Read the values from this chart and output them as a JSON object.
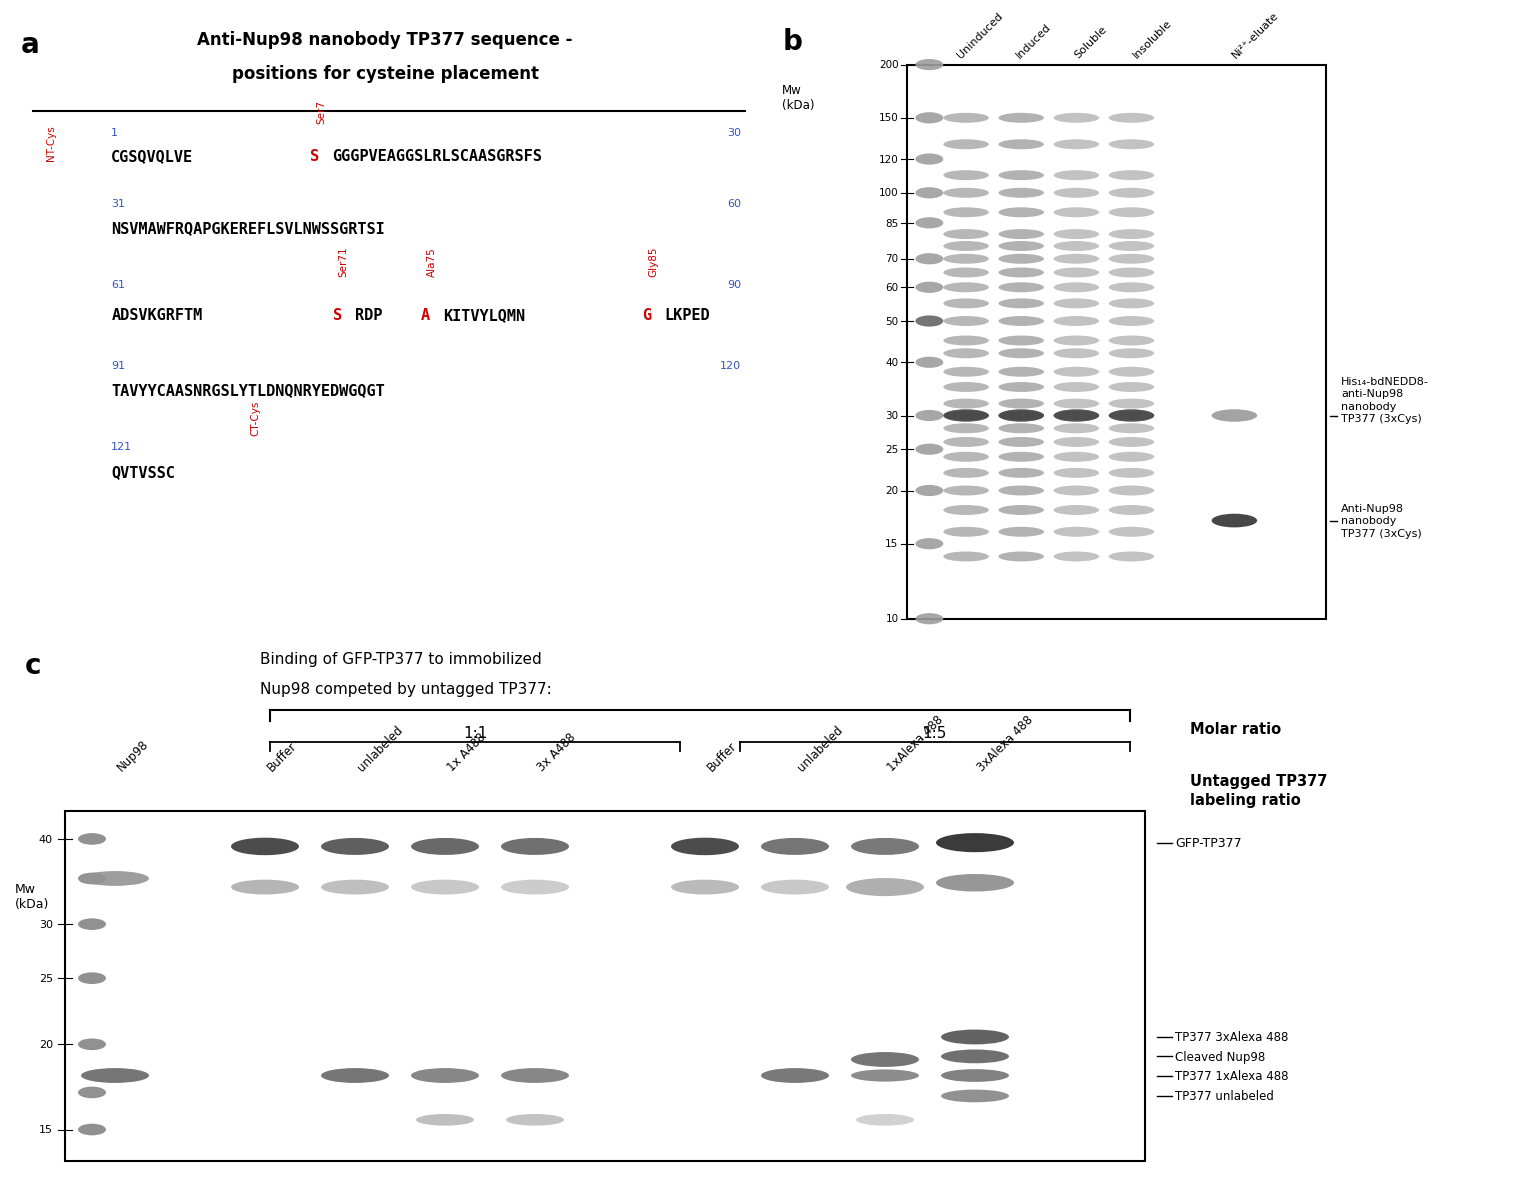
{
  "panel_a": {
    "title_line1": "Anti-Nup98 nanobody TP377 sequence -",
    "title_line2": "positions for cysteine placement",
    "label": "a",
    "seq_rows": [
      {
        "num_start": "1",
        "num_end": "30",
        "parts": [
          [
            "CGSQVQLVE",
            "black"
          ],
          [
            "S",
            "red"
          ],
          [
            "GGGPVEAGGSLRLSCAASGRSFS",
            "black"
          ]
        ],
        "nt_cys": true,
        "ser7": true
      },
      {
        "num_start": "31",
        "num_end": "60",
        "parts": [
          [
            "NSVMAWFRQAPGKEREFLSVLNWSSGRTSI",
            "black"
          ]
        ],
        "nt_cys": false,
        "ser7": false
      },
      {
        "num_start": "61",
        "num_end": "90",
        "parts": [
          [
            "ADSVKGRFTM",
            "black"
          ],
          [
            "S",
            "red"
          ],
          [
            "RDP",
            "black"
          ],
          [
            "A",
            "red"
          ],
          [
            "KITVYLQMN",
            "black"
          ],
          [
            "G",
            "red"
          ],
          [
            "LKPED",
            "black"
          ]
        ],
        "nt_cys": false,
        "ser7": false,
        "ser71": true,
        "ala75": true,
        "gly85": true
      },
      {
        "num_start": "91",
        "num_end": "120",
        "parts": [
          [
            "TAVYYCAASNRGSLYTLDNQNRYEDWGQGT",
            "black"
          ]
        ],
        "nt_cys": false,
        "ser7": false
      },
      {
        "num_start": "121",
        "num_end": null,
        "parts": [
          [
            "QVTVSSC",
            "black"
          ]
        ],
        "nt_cys": false,
        "ser7": false,
        "ct_cys": true
      }
    ]
  },
  "panel_b": {
    "label": "b",
    "mw_ticks": [
      200,
      150,
      120,
      100,
      85,
      70,
      60,
      50,
      40,
      30,
      25,
      20,
      15,
      10
    ],
    "col_labels": [
      "Uninduced",
      "Induced",
      "Soluble",
      "Insoluble",
      "Ni²⁺-eluate"
    ],
    "annotation1": "His₁₄-bdNEDD8-\nanti-Nup98\nnanobody\nTP377 (3xCys)",
    "annotation2": "Anti-Nup98\nnanobody\nTP377 (3xCys)"
  },
  "panel_c": {
    "label": "c",
    "title_line1": "Binding of GFP-TP377 to immobilized",
    "title_line2": "Nup98 competed by untagged TP377:",
    "molar_ratio_label": "Molar ratio",
    "untagged_label": "Untagged TP377\nlabeling ratio",
    "mw_ticks": [
      40,
      30,
      25,
      20,
      15
    ],
    "col_labels": [
      "Nup98",
      "Buffer",
      "unlabeled",
      "1x A488",
      "3x A488",
      "Buffer",
      "unlabeled",
      "1xAlexa 488",
      "3xAlexa 488"
    ],
    "ratio_11_label": "1:1",
    "ratio_15_label": "1:5",
    "ann_gfp": "GFP-TP377",
    "ann_bottom": [
      "TP377 3xAlexa 488",
      "Cleaved Nup98",
      "TP377 1xAlexa 488",
      "TP377 unlabeled"
    ]
  },
  "colors": {
    "red": "#cc0000",
    "blue": "#3355bb",
    "black": "#000000",
    "gel_bg": "#ffffff",
    "gel_border": "#000000"
  }
}
